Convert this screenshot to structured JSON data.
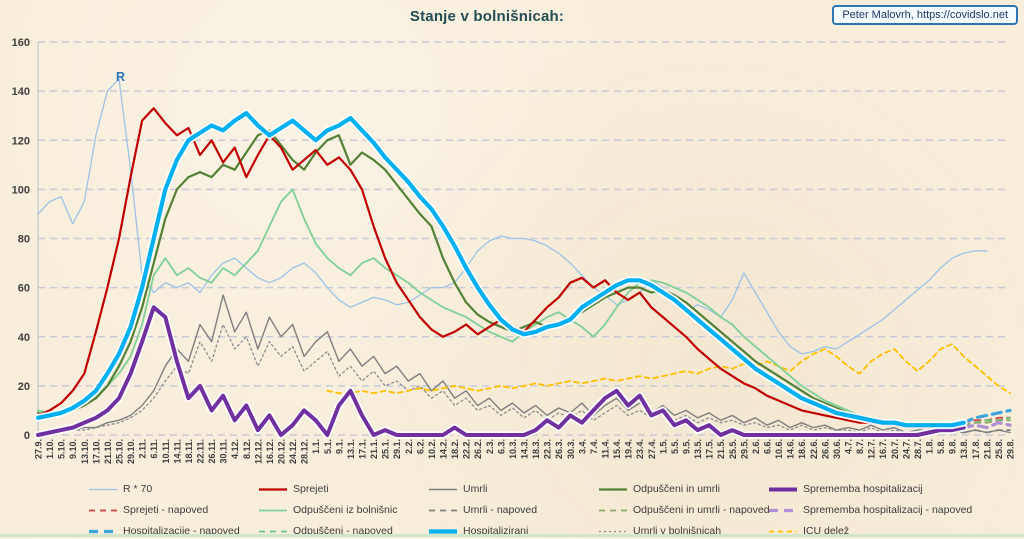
{
  "header": {
    "title": "Stanje v bolnišnicah:",
    "attribution": "Peter Malovrh, https://covidslo.net"
  },
  "annotation": {
    "r_label": "R"
  },
  "colors": {
    "background": "#f8eedb",
    "grid": "#c7ccd8",
    "axis_text": "#3f3f3f",
    "title_text": "#234e52",
    "attribution_border": "#2e75b6",
    "attribution_text": "#1f3864",
    "legend_text": "#3c3c3c",
    "r_annotation": "#2e75b6"
  },
  "chart_data": {
    "type": "line",
    "title": "Stanje v bolnišnicah:",
    "ylim": [
      0,
      160
    ],
    "y_ticks": [
      0,
      20,
      40,
      60,
      80,
      100,
      120,
      140,
      160
    ],
    "grid": "horizontal-dashed",
    "legend_position": "bottom",
    "x_tick_labels": [
      "27.9.",
      "1.10.",
      "5.10.",
      "9.10.",
      "13.10.",
      "17.10.",
      "21.10.",
      "25.10.",
      "29.10.",
      "2.11.",
      "6.11.",
      "10.11.",
      "14.11.",
      "18.11.",
      "22.11.",
      "26.11.",
      "30.11.",
      "4.12.",
      "8.12.",
      "12.12.",
      "16.12.",
      "20.12.",
      "24.12.",
      "28.12.",
      "1.1.",
      "5.1.",
      "9.1.",
      "13.1.",
      "17.1.",
      "21.1.",
      "25.1.",
      "29.1.",
      "2.2.",
      "6.2.",
      "10.2.",
      "14.2.",
      "18.2.",
      "22.2.",
      "26.2.",
      "2.3.",
      "6.3.",
      "10.3.",
      "14.3.",
      "18.3.",
      "22.3.",
      "26.3.",
      "30.3.",
      "3.4.",
      "7.4.",
      "11.4.",
      "15.4.",
      "19.4.",
      "23.4.",
      "27.4.",
      "1.5.",
      "5.5.",
      "9.5.",
      "13.5.",
      "17.5.",
      "21.5.",
      "25.5.",
      "29.5.",
      "2.6.",
      "6.6.",
      "10.6.",
      "14.6.",
      "18.6.",
      "22.6.",
      "26.6.",
      "30.6.",
      "4.7.",
      "8.7.",
      "12.7.",
      "16.7.",
      "20.7.",
      "24.7.",
      "28.7.",
      "1.8.",
      "5.8.",
      "9.8.",
      "13.8.",
      "17.8.",
      "21.8.",
      "25.8.",
      "29.8."
    ],
    "series": [
      {
        "name": "R * 70",
        "color": "#9dc3e6",
        "width": 1.3,
        "dash": null,
        "glow": false,
        "start_index": 0,
        "values": [
          90,
          95,
          97,
          86,
          95,
          122,
          140,
          145,
          108,
          65,
          58,
          62,
          60,
          62,
          58,
          65,
          70,
          72,
          68,
          64,
          62,
          64,
          68,
          70,
          66,
          60,
          55,
          52,
          54,
          56,
          55,
          53,
          54,
          57,
          60,
          60,
          62,
          68,
          75,
          79,
          81,
          80,
          80,
          79,
          77,
          74,
          70,
          65,
          60,
          57,
          53,
          55,
          58,
          63,
          60,
          55,
          50,
          53,
          51,
          48,
          55,
          66,
          58,
          50,
          42,
          36,
          33,
          34,
          36,
          35,
          38,
          41,
          44,
          47,
          51,
          55,
          59,
          63,
          68,
          72,
          74,
          75,
          75
        ]
      },
      {
        "name": "Umrli v bolnišnicah",
        "color": "#8c8c8c",
        "width": 1.3,
        "dash": "2 3",
        "glow": false,
        "start_index": 0,
        "values": [
          1,
          1,
          1,
          2,
          2,
          3,
          4,
          5,
          7,
          10,
          15,
          22,
          28,
          25,
          38,
          30,
          45,
          35,
          40,
          28,
          38,
          32,
          36,
          26,
          30,
          34,
          24,
          28,
          22,
          26,
          20,
          22,
          18,
          20,
          15,
          18,
          12,
          15,
          10,
          12,
          8,
          11,
          7,
          10,
          6,
          9,
          7,
          10,
          6,
          9,
          12,
          8,
          10,
          7,
          9,
          6,
          8,
          5,
          7,
          5,
          6,
          4,
          5,
          3,
          4,
          2,
          4,
          2,
          3,
          2,
          2,
          1,
          3,
          1,
          2,
          1,
          1,
          2,
          1,
          1,
          1
        ]
      },
      {
        "name": "Umrli",
        "color": "#7f7f7f",
        "width": 1.4,
        "dash": null,
        "glow": false,
        "start_index": 0,
        "values": [
          1,
          1,
          2,
          2,
          3,
          3,
          5,
          6,
          8,
          12,
          18,
          28,
          35,
          30,
          45,
          38,
          57,
          42,
          50,
          35,
          48,
          40,
          45,
          32,
          38,
          42,
          30,
          35,
          28,
          32,
          25,
          28,
          22,
          25,
          18,
          22,
          15,
          18,
          12,
          15,
          10,
          13,
          9,
          12,
          8,
          11,
          9,
          13,
          8,
          12,
          15,
          10,
          13,
          9,
          12,
          8,
          10,
          7,
          9,
          6,
          8,
          5,
          7,
          4,
          6,
          3,
          5,
          3,
          4,
          2,
          3,
          2,
          4,
          2,
          3,
          1,
          2,
          3,
          1,
          2,
          1,
          2,
          1,
          2,
          1
        ]
      },
      {
        "name": "ICU delež",
        "color": "#ffc000",
        "width": 1.8,
        "dash": "5 4",
        "glow": false,
        "start_index": 25,
        "values": [
          18,
          17,
          17,
          18,
          17,
          18,
          17,
          18,
          19,
          18,
          19,
          20,
          19,
          18,
          19,
          20,
          19,
          20,
          21,
          20,
          21,
          22,
          21,
          22,
          23,
          22,
          23,
          24,
          23,
          24,
          25,
          26,
          25,
          27,
          28,
          27,
          29,
          28,
          30,
          28,
          26,
          30,
          33,
          35,
          32,
          28,
          25,
          30,
          33,
          35,
          30,
          26,
          30,
          35,
          37,
          32,
          28,
          24,
          20,
          17
        ]
      },
      {
        "name": "Odpuščeni iz bolnišnic",
        "color": "#7fd096",
        "width": 1.8,
        "dash": null,
        "glow": false,
        "start_index": 0,
        "values": [
          10,
          9,
          10,
          11,
          13,
          16,
          20,
          25,
          32,
          45,
          65,
          72,
          65,
          68,
          64,
          62,
          68,
          65,
          70,
          75,
          85,
          95,
          100,
          88,
          78,
          72,
          68,
          65,
          70,
          72,
          68,
          65,
          62,
          58,
          55,
          52,
          50,
          48,
          45,
          42,
          40,
          38,
          42,
          45,
          48,
          50,
          47,
          44,
          40,
          45,
          52,
          58,
          62,
          63,
          62,
          60,
          58,
          55,
          52,
          48,
          45,
          40,
          36,
          32,
          28,
          24,
          20,
          17,
          14,
          12,
          10,
          8,
          7,
          6,
          5,
          4,
          4,
          3,
          3,
          3,
          4
        ]
      },
      {
        "name": "Odpuščeni in umrli",
        "color": "#538135",
        "width": 2.2,
        "dash": null,
        "glow": false,
        "start_index": 0,
        "values": [
          9,
          8,
          9,
          10,
          12,
          15,
          20,
          28,
          38,
          52,
          70,
          88,
          100,
          105,
          107,
          105,
          110,
          108,
          115,
          122,
          124,
          118,
          112,
          108,
          115,
          120,
          122,
          110,
          115,
          112,
          108,
          102,
          96,
          90,
          85,
          72,
          62,
          54,
          49,
          46,
          44,
          42,
          44,
          46,
          44,
          46,
          48,
          50,
          53,
          56,
          58,
          60,
          60,
          58,
          59,
          57,
          54,
          50,
          46,
          42,
          38,
          34,
          30,
          27,
          24,
          21,
          18,
          15,
          13,
          11,
          9,
          8,
          7,
          6,
          5,
          4,
          4,
          3,
          3,
          3,
          4
        ]
      },
      {
        "name": "Sprejeti",
        "color": "#c00000",
        "width": 2.2,
        "dash": null,
        "glow": false,
        "start_index": 0,
        "values": [
          8,
          10,
          13,
          18,
          25,
          42,
          60,
          80,
          105,
          128,
          133,
          127,
          122,
          125,
          114,
          120,
          111,
          117,
          105,
          114,
          122,
          117,
          108,
          112,
          116,
          110,
          113,
          108,
          100,
          85,
          72,
          62,
          55,
          48,
          43,
          40,
          42,
          45,
          41,
          44,
          47,
          44,
          42,
          47,
          52,
          56,
          62,
          64,
          60,
          63,
          58,
          55,
          58,
          52,
          48,
          44,
          40,
          35,
          31,
          27,
          24,
          21,
          19,
          16,
          14,
          12,
          10,
          9,
          8,
          7,
          6,
          5,
          5,
          4,
          4,
          3,
          3,
          3,
          3,
          3,
          5
        ]
      },
      {
        "name": "Sprejeti - napoved",
        "color": "#d05050",
        "width": 2,
        "dash": "6 5",
        "glow": false,
        "start_index": 80,
        "values": [
          5,
          6,
          6,
          7,
          7
        ]
      },
      {
        "name": "Umrli - napoved",
        "color": "#7f7f7f",
        "width": 1.8,
        "dash": "6 5",
        "glow": false,
        "start_index": 80,
        "values": [
          1,
          2,
          1,
          2,
          2
        ]
      },
      {
        "name": "Odpuščeni - napoved",
        "color": "#66c683",
        "width": 1.8,
        "dash": "6 5",
        "glow": false,
        "start_index": 80,
        "values": [
          4,
          5,
          6,
          6,
          7
        ]
      },
      {
        "name": "Odpuščeni in umrli - napoved",
        "color": "#8aa86a",
        "width": 1.8,
        "dash": "6 5",
        "glow": false,
        "start_index": 80,
        "values": [
          4,
          5,
          5,
          6,
          6
        ]
      },
      {
        "name": "Hospitalizacije - napoved",
        "color": "#3da5dc",
        "width": 3.2,
        "dash": "9 6",
        "glow": false,
        "start_index": 80,
        "values": [
          5,
          7,
          8,
          9,
          10
        ]
      },
      {
        "name": "Sprememba hospitalizacij - napoved",
        "color": "#b08fd6",
        "width": 3.2,
        "dash": "9 6",
        "glow": false,
        "start_index": 80,
        "values": [
          3,
          4,
          3,
          5,
          4
        ]
      },
      {
        "name": "Sprememba hospitalizacij",
        "color": "#7030a0",
        "width": 4,
        "dash": null,
        "glow": true,
        "start_index": 0,
        "values": [
          0,
          1,
          2,
          3,
          5,
          7,
          10,
          15,
          25,
          38,
          52,
          48,
          30,
          15,
          20,
          10,
          16,
          6,
          12,
          2,
          8,
          0,
          4,
          10,
          6,
          0,
          12,
          18,
          8,
          0,
          2,
          0,
          0,
          0,
          0,
          0,
          3,
          0,
          0,
          0,
          0,
          0,
          0,
          2,
          6,
          3,
          8,
          5,
          10,
          15,
          18,
          12,
          16,
          8,
          10,
          4,
          6,
          2,
          4,
          0,
          2,
          0,
          0,
          0,
          0,
          0,
          0,
          0,
          0,
          0,
          0,
          0,
          0,
          0,
          0,
          0,
          0,
          1,
          2,
          2,
          3
        ]
      },
      {
        "name": "Hospitalizirani",
        "color": "#00b0f0",
        "width": 4.2,
        "dash": null,
        "glow": true,
        "start_index": 0,
        "values": [
          7,
          8,
          9,
          11,
          14,
          18,
          25,
          33,
          44,
          60,
          80,
          100,
          112,
          120,
          123,
          126,
          124,
          128,
          131,
          126,
          122,
          125,
          128,
          124,
          120,
          124,
          126,
          129,
          124,
          119,
          113,
          108,
          103,
          97,
          92,
          85,
          77,
          68,
          60,
          53,
          47,
          43,
          41,
          42,
          44,
          45,
          47,
          52,
          55,
          58,
          61,
          63,
          63,
          61,
          58,
          55,
          51,
          47,
          43,
          39,
          35,
          31,
          27,
          24,
          21,
          18,
          15,
          13,
          11,
          9,
          8,
          7,
          6,
          5,
          5,
          4,
          4,
          4,
          4,
          4,
          5
        ]
      }
    ]
  },
  "legend": {
    "items": [
      "R * 70",
      "Sprejeti - napoved",
      "Hospitalizacije - napoved",
      "Sprejeti",
      "Odpuščeni iz bolnišnic",
      "Odpuščeni - napoved",
      "Umrli",
      "Umrli - napoved",
      "Hospitalizirani",
      "Odpuščeni in umrli",
      "Odpuščeni in umrli - napoved",
      "Umrli v bolnišnicah",
      "Sprememba hospitalizacij",
      "Sprememba hospitalizacij - napoved",
      "ICU delež"
    ]
  }
}
